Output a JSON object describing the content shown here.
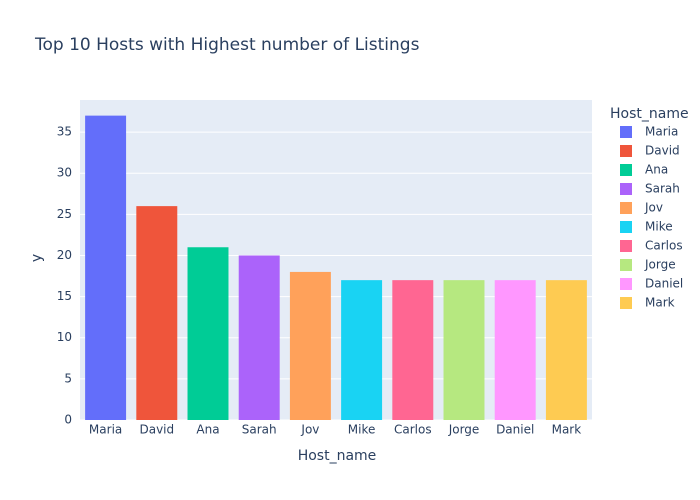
{
  "chart_data": {
    "type": "bar",
    "title": "Top 10 Hosts with Highest number of Listings",
    "x_label": "Host_name",
    "y_label": "y",
    "legend_title": "Host_name",
    "categories": [
      "Maria",
      "David",
      "Ana",
      "Sarah",
      "Jov",
      "Mike",
      "Carlos",
      "Jorge",
      "Daniel",
      "Mark"
    ],
    "values": [
      37,
      26,
      21,
      20,
      18,
      17,
      17,
      17,
      17,
      17
    ],
    "colors": [
      "#636efa",
      "#ef553b",
      "#00cc96",
      "#ab63fa",
      "#ffa15a",
      "#19d3f3",
      "#ff6692",
      "#b6e880",
      "#ff97ff",
      "#fecb52"
    ],
    "ylim": [
      0,
      38.9
    ],
    "yticks": [
      0,
      5,
      10,
      15,
      20,
      25,
      30,
      35
    ],
    "grid": true
  }
}
